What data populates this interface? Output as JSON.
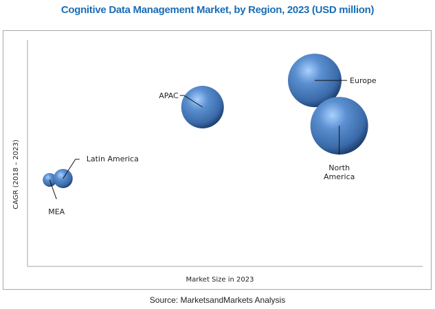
{
  "chart_data": {
    "type": "bubble",
    "title": "Cognitive Data Management Market, by Region, 2023 (USD million)",
    "xlabel": "Market Size in 2023",
    "ylabel": "CAGR (2018 – 2023)",
    "xlim": [
      0,
      100
    ],
    "ylim": [
      0,
      100
    ],
    "grid": false,
    "legend": "none",
    "bubble_color": "#4a7fc1",
    "points": [
      {
        "label": "MEA",
        "x": 5.6,
        "y": 38.2,
        "size": 10
      },
      {
        "label": "Latin America",
        "x": 9.0,
        "y": 38.8,
        "size": 14
      },
      {
        "label": "APAC",
        "x": 44.3,
        "y": 70.3,
        "size": 31
      },
      {
        "label": "Europe",
        "x": 72.7,
        "y": 82.1,
        "size": 39
      },
      {
        "label": "North America",
        "x": 78.9,
        "y": 62.1,
        "size": 42
      }
    ]
  },
  "source": "Source: MarketsandMarkets Analysis"
}
